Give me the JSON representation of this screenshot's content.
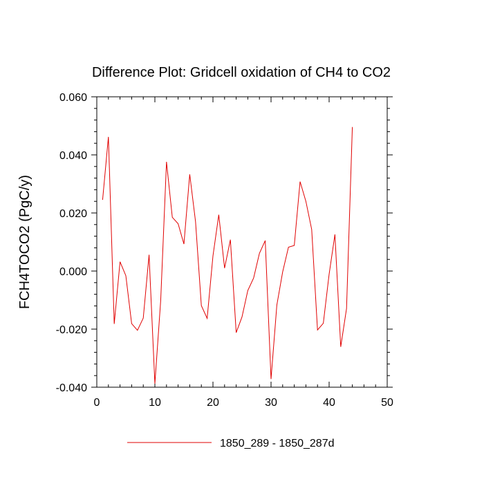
{
  "chart_data": {
    "type": "line",
    "title": "Difference Plot: Gridcell oxidation of CH4 to CO2",
    "xlabel": "",
    "ylabel": "FCH4TOCO2  (PgC/y)",
    "xlim": [
      0,
      50
    ],
    "ylim": [
      -0.04,
      0.06
    ],
    "x_ticks": [
      0,
      10,
      20,
      30,
      40,
      50
    ],
    "x_tick_labels": [
      "0",
      "10",
      "20",
      "30",
      "40",
      "50"
    ],
    "y_ticks": [
      -0.04,
      -0.02,
      0.0,
      0.02,
      0.04,
      0.06
    ],
    "y_tick_labels": [
      "-0.040",
      "-0.020",
      "0.000",
      "0.020",
      "0.040",
      "0.060"
    ],
    "grid": false,
    "legend_position": "bottom-center",
    "series": [
      {
        "name": "1850_289 - 1850_287d",
        "color": "#e00000",
        "x": [
          1,
          2,
          3,
          4,
          5,
          6,
          7,
          8,
          9,
          10,
          11,
          12,
          13,
          14,
          15,
          16,
          17,
          18,
          19,
          20,
          21,
          22,
          23,
          24,
          25,
          26,
          27,
          28,
          29,
          30,
          31,
          32,
          33,
          34,
          35,
          36,
          37,
          38,
          39,
          40,
          41,
          42,
          43,
          44
        ],
        "values": [
          0.0245,
          0.0462,
          -0.0182,
          0.0032,
          -0.0016,
          -0.0181,
          -0.0204,
          -0.0162,
          0.0056,
          -0.0388,
          -0.0102,
          0.0376,
          0.0185,
          0.0163,
          0.0093,
          0.0333,
          0.017,
          -0.0119,
          -0.0163,
          0.0052,
          0.0194,
          0.001,
          0.0108,
          -0.0212,
          -0.0158,
          -0.0067,
          -0.0024,
          0.0061,
          0.0105,
          -0.0372,
          -0.0117,
          -0.0003,
          0.0082,
          0.0088,
          0.0308,
          0.024,
          0.0143,
          -0.0203,
          -0.018,
          -0.0011,
          0.0126,
          -0.0261,
          -0.0129,
          0.0496
        ]
      }
    ]
  }
}
